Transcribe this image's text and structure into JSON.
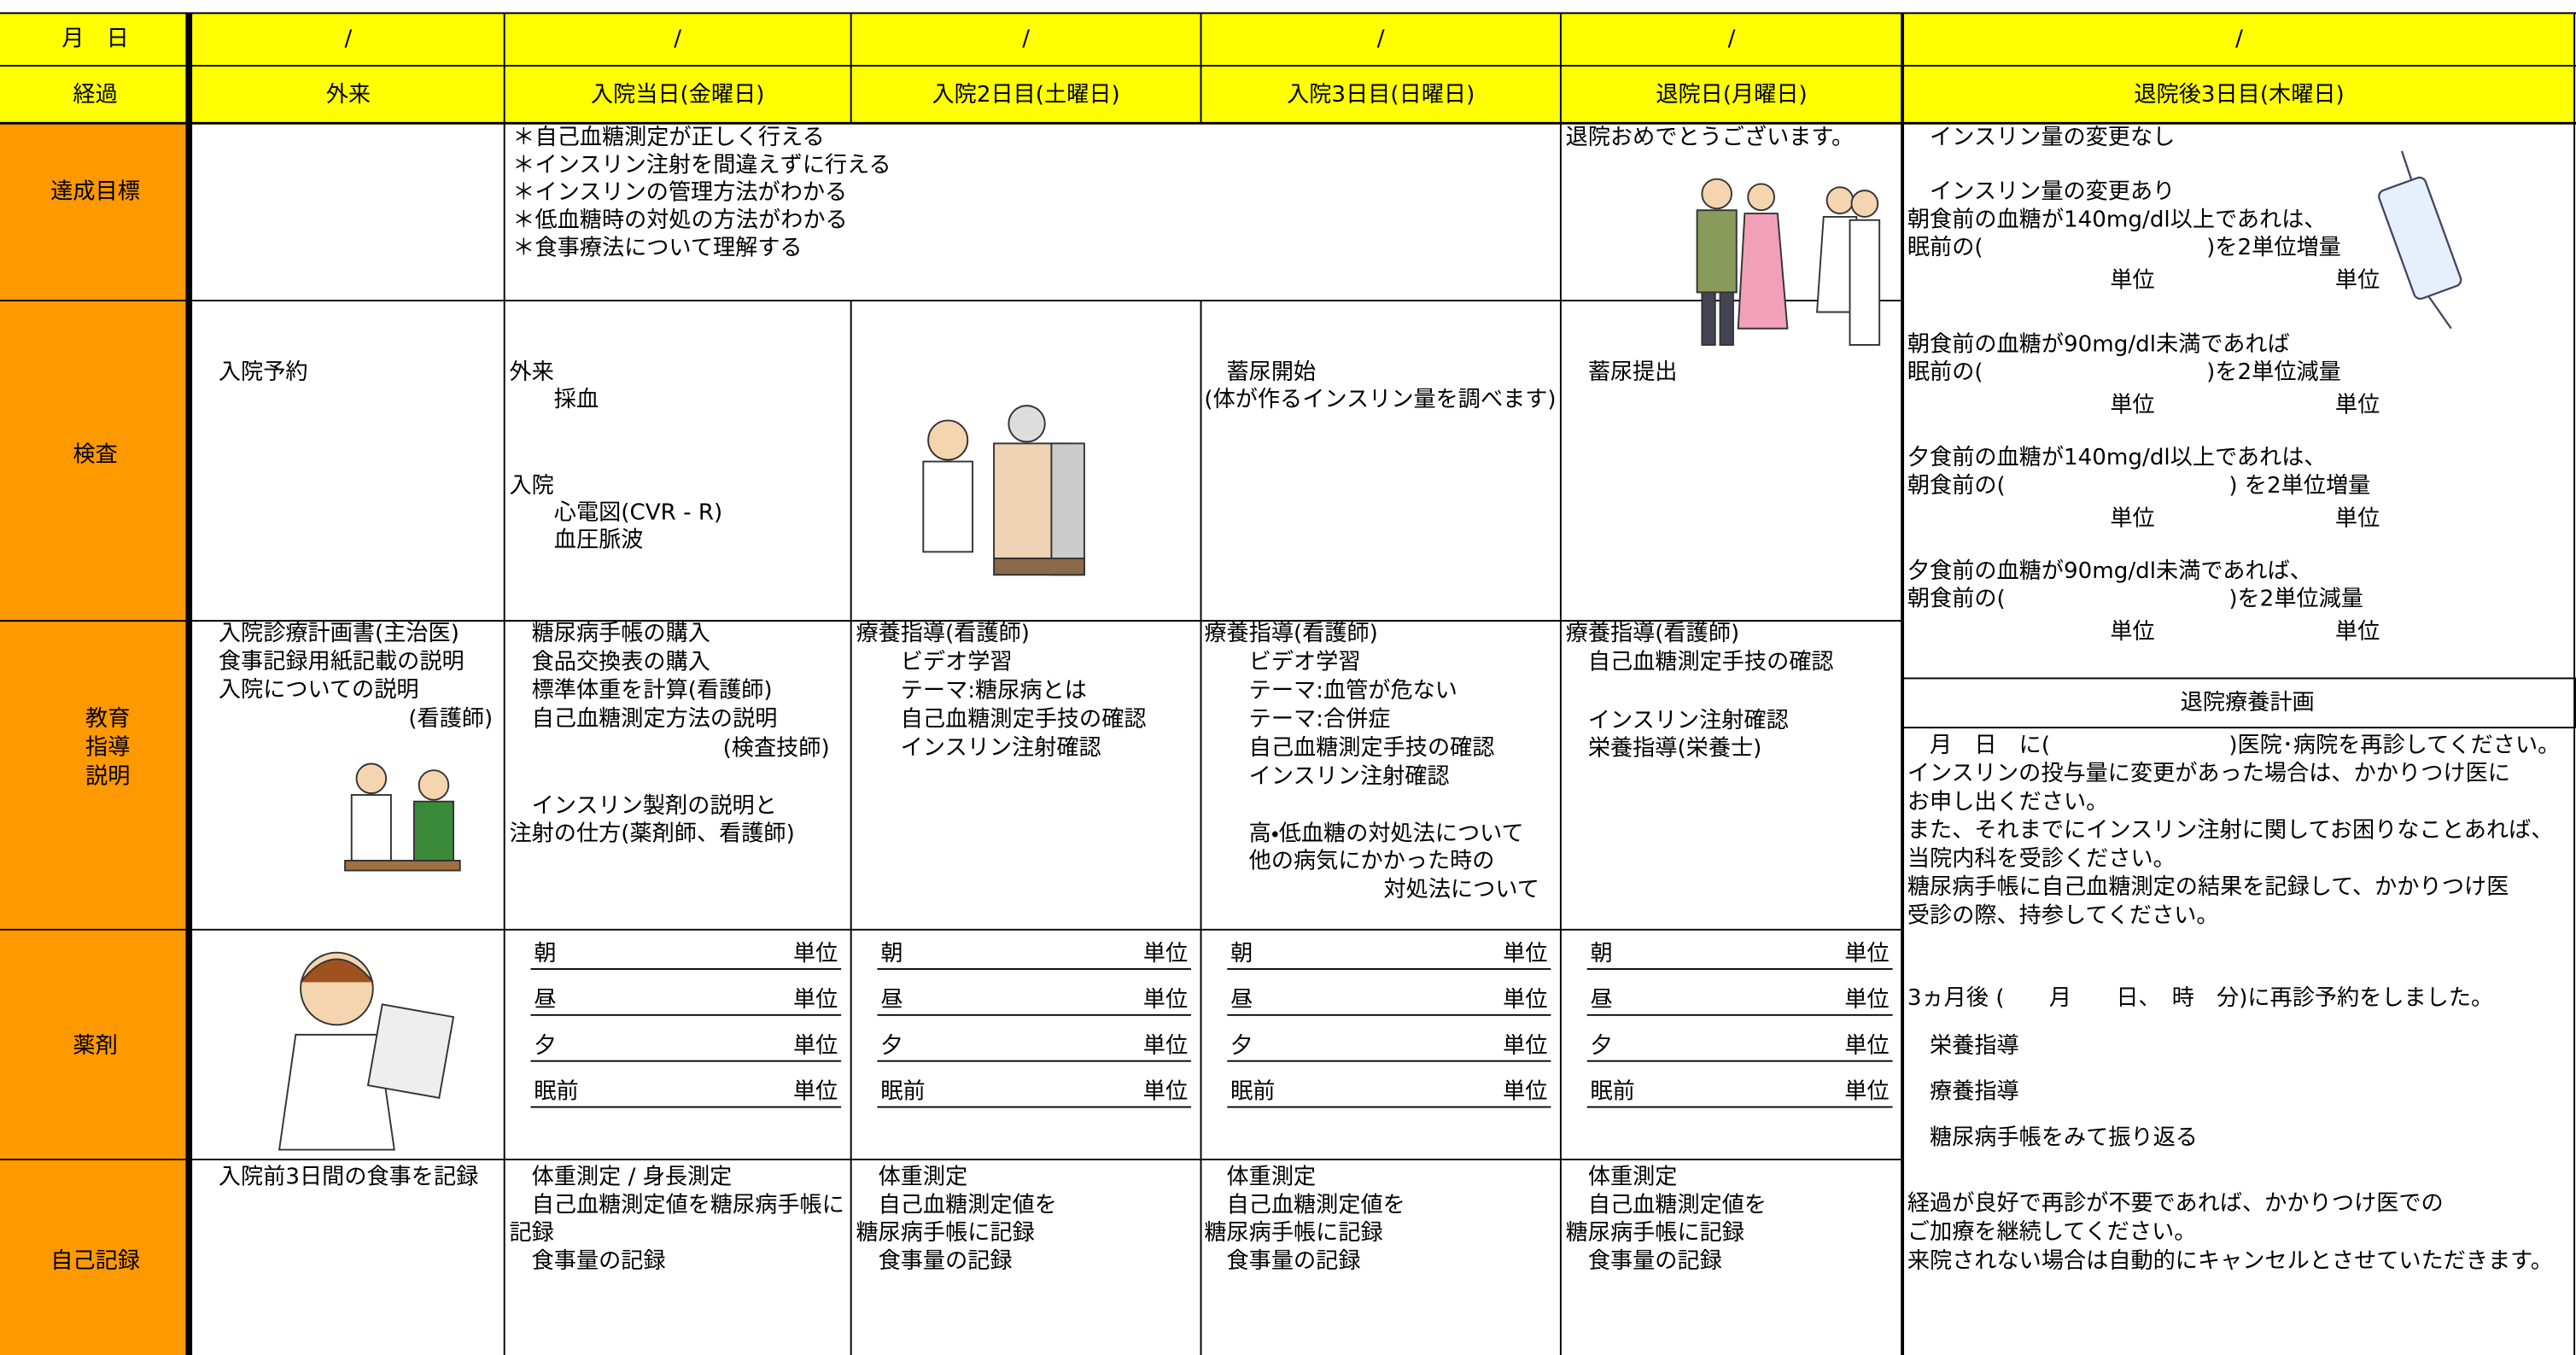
{
  "header": {
    "date_label": "月　日",
    "dates": [
      "/",
      "/",
      "/",
      "/",
      "/",
      "/"
    ],
    "phase_label": "経過",
    "phases": [
      "外来",
      "入院当日(金曜日)",
      "入院2日目(土曜日)",
      "入院3日目(日曜日)",
      "退院日(月曜日)",
      "退院後3日目(木曜日)"
    ]
  },
  "unit": "単位",
  "goals": {
    "label": "達成目標",
    "inpatient": [
      "＊自己血糖測定が正しく行える",
      "＊インスリン注射を間違えずに行える",
      "＊インスリンの管理方法がわかる",
      "＊低血糖時の対処の方法がわかる",
      "＊食事療法について理解する"
    ],
    "discharge": "退院おめでとうございます。"
  },
  "tests": {
    "label": "検査",
    "outpatient": "入院予約",
    "day0_outpatient": [
      "外来",
      "　　採血"
    ],
    "day0_inpatient": [
      "入院",
      "　　心電図(CVR - R)",
      "　　血圧脈波"
    ],
    "day3": [
      "　蓄尿開始",
      "(体が作るインスリン量を調べます)"
    ],
    "discharge": "　蓄尿提出"
  },
  "education": {
    "label": [
      "教育",
      "指導",
      "説明"
    ],
    "outpatient": [
      "入院診療計画書(主治医)",
      "食事記録用紙記載の説明",
      "入院についての説明"
    ],
    "outpatient_staff": "(看護師)",
    "day0": [
      "　糖尿病手帳の購入",
      "　食品交換表の購入",
      "　標準体重を計算(看護師)",
      "　自己血糖測定方法の説明"
    ],
    "day0_staff": "(検査技師)",
    "day0_b": [
      "　インスリン製剤の説明と",
      "注射の仕方(薬剤師、看護師)"
    ],
    "day2": [
      "療養指導(看護師)",
      "　　ビデオ学習",
      "　　テーマ:糖尿病とは",
      "　　自己血糖測定手技の確認",
      "　　インスリン注射確認"
    ],
    "day3": [
      "療養指導(看護師)",
      "　　ビデオ学習",
      "　　テーマ:血管が危ない",
      "　　テーマ:合併症",
      "　　自己血糖測定手技の確認",
      "　　インスリン注射確認"
    ],
    "day3_b": [
      "　　高・低血糖の対処法について",
      "　　他の病気にかかった時の"
    ],
    "day3_c": "対処法について",
    "discharge": [
      "療養指導(看護師)",
      "　自己血糖測定手技の確認"
    ],
    "discharge_b": [
      "　インスリン注射確認",
      "　栄養指導(栄養士)"
    ]
  },
  "medication": {
    "label": "薬剤",
    "slots": [
      "朝",
      "昼",
      "夕",
      "眠前"
    ]
  },
  "records": {
    "label": "自己記録",
    "outpatient": "入院前3日間の食事を記録",
    "day0": [
      "　体重測定 / 身長測定",
      "　自己血糖測定値を糖尿病手帳に",
      "記録",
      "　食事量の記録"
    ],
    "day2": [
      "　体重測定",
      "　自己血糖測定値を",
      "糖尿病手帳に記録",
      "　食事量の記録"
    ],
    "day3": [
      "　体重測定",
      "　自己血糖測定値を",
      "糖尿病手帳に記録",
      "　食事量の記録"
    ],
    "discharge": [
      "　体重測定",
      "　自己血糖測定値を",
      "糖尿病手帳に記録",
      "　食事量の記録"
    ]
  },
  "after_discharge": {
    "no_change": "　インスリン量の変更なし",
    "change": "　インスリン量の変更あり",
    "rules": [
      [
        "朝食前の血糖が140mg/dl以上であれは、",
        "眠前の(　　　　　　　　　　)を2単位増量"
      ],
      [
        "朝食前の血糖が90mg/dl未満であれば",
        "眠前の(　　　　　　　　　　)を2単位減量"
      ],
      [
        "夕食前の血糖が140mg/dl以上であれは、",
        "朝食前の(　　　　　　　　　　) を2単位増量"
      ],
      [
        "夕食前の血糖が90mg/dl未満であれば、",
        "朝食前の(　　　　　　　　　　)を2単位減量"
      ]
    ],
    "plan_title": "退院療養計画",
    "plan": [
      "　月　日　に(　　　　　　　　)医院･病院を再診してください。",
      "インスリンの投与量に変更があった場合は、かかりつけ医に",
      "お申し出ください。",
      "また、それまでにインスリン注射に関してお困りなことあれば、",
      "当院内科を受診ください。",
      "糖尿病手帳に自己血糖測定の結果を記録して、かかりつけ医",
      "受診の際、持参してください。"
    ],
    "appointment": "3ヵ月後 (　　月　　日、　時　分)に再診予約をしました。",
    "followups": [
      "　栄養指導",
      "　療養指導",
      "　糖尿病手帳をみて振り返る"
    ],
    "closing": [
      "経過が良好で再診が不要であれば、かかりつけ医での",
      "ご加療を継続してください。",
      "来院されない場合は自動的にキャンセルとさせていただきます。"
    ]
  }
}
